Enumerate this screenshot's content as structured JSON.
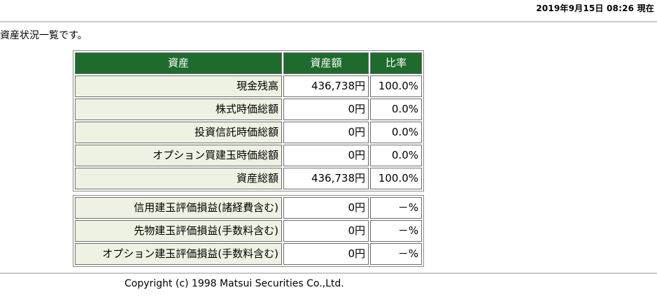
{
  "header": {
    "timestamp": "2019年9月15日 08:26 現在"
  },
  "intro": "資産状況一覧です。",
  "table_main": {
    "columns": [
      "資産",
      "資産額",
      "比率"
    ],
    "rows": [
      {
        "label": "現金残高",
        "amount": "436,738円",
        "ratio": "100.0%"
      },
      {
        "label": "株式時価総額",
        "amount": "0円",
        "ratio": "0.0%"
      },
      {
        "label": "投資信託時価総額",
        "amount": "0円",
        "ratio": "0.0%"
      },
      {
        "label": "オプション買建玉時価総額",
        "amount": "0円",
        "ratio": "0.0%"
      },
      {
        "label": "資産総額",
        "amount": "436,738円",
        "ratio": "100.0%"
      }
    ]
  },
  "table_eval": {
    "rows": [
      {
        "label": "信用建玉評価損益(諸経費含む)",
        "amount": "0円",
        "ratio": "－%"
      },
      {
        "label": "先物建玉評価損益(手数料含む)",
        "amount": "0円",
        "ratio": "－%"
      },
      {
        "label": "オプション建玉評価損益(手数料含む)",
        "amount": "0円",
        "ratio": "－%"
      }
    ]
  },
  "footer": {
    "copyright": "Copyright (c) 1998 Matsui Securities Co.,Ltd."
  },
  "colors": {
    "header_bg": "#1e6b2d",
    "label_bg": "#eef2e2"
  }
}
